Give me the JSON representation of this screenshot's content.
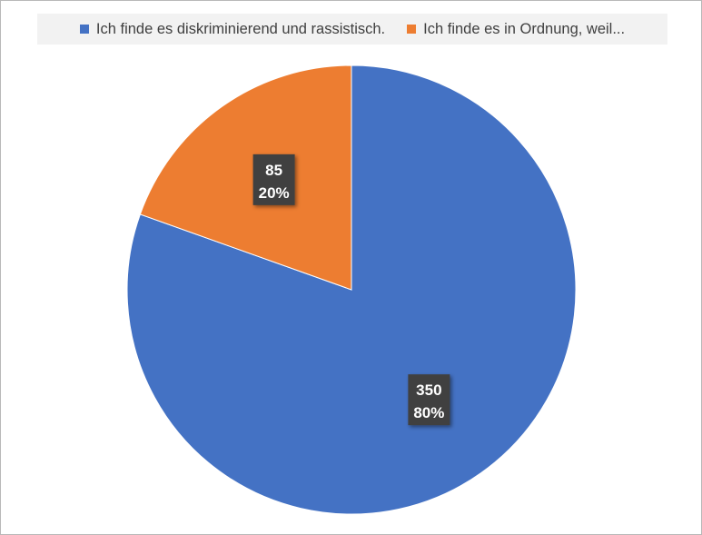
{
  "chart_data": {
    "type": "pie",
    "categories": [
      "Ich finde es diskriminierend und rassistisch.",
      "Ich finde es in Ordnung, weil..."
    ],
    "values": [
      350,
      85
    ],
    "percent_labels": [
      "80%",
      "20%"
    ],
    "colors": [
      "#4472c4",
      "#ed7d31"
    ],
    "start_angle_deg": 0,
    "direction": "clockwise",
    "legend_position": "top"
  }
}
